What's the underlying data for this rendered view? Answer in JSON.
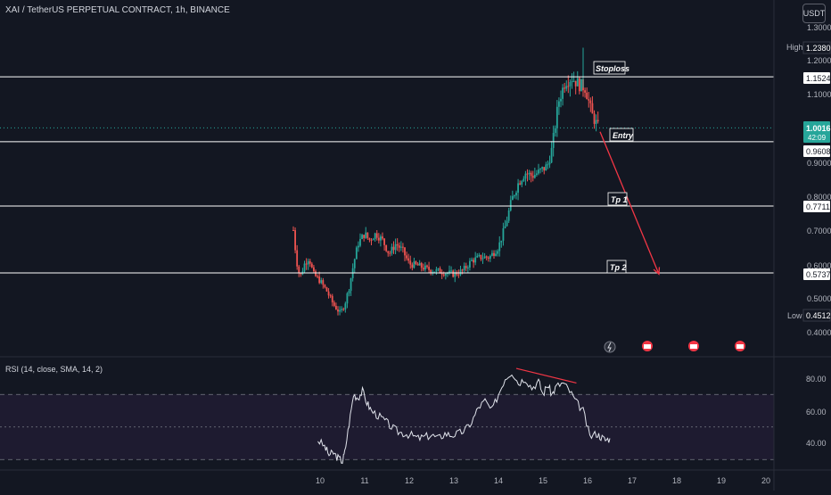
{
  "header": {
    "symbol_title": "XAI / TetherUS PERPETUAL CONTRACT, 1h, BINANCE",
    "currency": "USDT"
  },
  "price_axis": {
    "ticks": [
      "1.3000",
      "1.2000",
      "1.1000",
      "0.9000",
      "0.8000",
      "0.7000",
      "0.6000",
      "0.5000",
      "0.4000"
    ]
  },
  "labels": {
    "high_label": "High",
    "high_value": "1.2380",
    "low_label": "Low",
    "low_value": "0.4512",
    "current_price": "1.0016",
    "countdown": "42:09",
    "stoploss_price": "1.1524",
    "entry_price": "0.9608",
    "tp1_price": "0.7711",
    "tp2_price": "0.5737"
  },
  "annotations": {
    "stoploss": "Stoploss",
    "entry": "Entry",
    "tp1": "Tp 1",
    "tp2": "Tp 2"
  },
  "rsi": {
    "title": "RSI (14, close, SMA, 14, 2)",
    "ticks": [
      "80.00",
      "60.00",
      "40.00"
    ]
  },
  "time_axis": {
    "ticks": [
      "10",
      "11",
      "12",
      "13",
      "14",
      "15",
      "16",
      "17",
      "18",
      "19",
      "20"
    ]
  },
  "colors": {
    "background": "#131722",
    "up": "#26a69a",
    "down": "#ef5350",
    "level_line": "#ffffff",
    "arrow": "#f23645",
    "rsi_line": "#e0e3eb",
    "rsi_band": "#1e1b30"
  },
  "chart_data": [
    {
      "type": "candlestick",
      "title": "XAI / TetherUS PERPETUAL CONTRACT, 1h, BINANCE",
      "x_unit": "day of month",
      "xlim": [
        9.2,
        20.5
      ],
      "ylim": [
        0.38,
        1.32
      ],
      "levels": {
        "stoploss": 1.1524,
        "entry": 0.9608,
        "tp1": 0.7711,
        "tp2": 0.5737
      },
      "high": 1.238,
      "low": 0.4512,
      "last": 1.0016,
      "price_path": [
        [
          9.4,
          0.7
        ],
        [
          9.47,
          0.61
        ],
        [
          9.55,
          0.56
        ],
        [
          9.65,
          0.6
        ],
        [
          9.75,
          0.62
        ],
        [
          9.85,
          0.57
        ],
        [
          10.0,
          0.55
        ],
        [
          10.15,
          0.52
        ],
        [
          10.3,
          0.48
        ],
        [
          10.45,
          0.455
        ],
        [
          10.55,
          0.48
        ],
        [
          10.65,
          0.53
        ],
        [
          10.75,
          0.6
        ],
        [
          10.85,
          0.66
        ],
        [
          11.0,
          0.69
        ],
        [
          11.1,
          0.67
        ],
        [
          11.25,
          0.69
        ],
        [
          11.4,
          0.67
        ],
        [
          11.55,
          0.63
        ],
        [
          11.7,
          0.66
        ],
        [
          11.85,
          0.64
        ],
        [
          12.0,
          0.6
        ],
        [
          12.2,
          0.595
        ],
        [
          12.4,
          0.585
        ],
        [
          12.6,
          0.58
        ],
        [
          12.8,
          0.575
        ],
        [
          13.0,
          0.57
        ],
        [
          13.2,
          0.58
        ],
        [
          13.4,
          0.61
        ],
        [
          13.6,
          0.62
        ],
        [
          13.8,
          0.62
        ],
        [
          14.0,
          0.65
        ],
        [
          14.15,
          0.71
        ],
        [
          14.3,
          0.79
        ],
        [
          14.45,
          0.84
        ],
        [
          14.6,
          0.87
        ],
        [
          14.75,
          0.86
        ],
        [
          14.9,
          0.87
        ],
        [
          15.0,
          0.88
        ],
        [
          15.1,
          0.89
        ],
        [
          15.2,
          0.94
        ],
        [
          15.35,
          1.08
        ],
        [
          15.5,
          1.14
        ],
        [
          15.65,
          1.15
        ],
        [
          15.8,
          1.13
        ],
        [
          15.95,
          1.12
        ],
        [
          16.1,
          1.04
        ],
        [
          16.25,
          1.0
        ]
      ],
      "projection": {
        "from": [
          16.28,
          0.99
        ],
        "to": [
          17.6,
          0.57
        ]
      }
    },
    {
      "type": "line",
      "title": "RSI (14, close, SMA, 14, 2)",
      "ylim": [
        27,
        88
      ],
      "yticks": [
        80,
        60,
        40
      ],
      "bands": [
        70,
        50,
        30
      ],
      "x": [
        9.95,
        10.1,
        10.2,
        10.3,
        10.4,
        10.5,
        10.55,
        10.65,
        10.75,
        10.85,
        10.95,
        11.05,
        11.15,
        11.3,
        11.45,
        11.6,
        11.75,
        11.9,
        12.05,
        12.2,
        12.35,
        12.5,
        12.65,
        12.8,
        12.95,
        13.1,
        13.25,
        13.4,
        13.55,
        13.7,
        13.85,
        14.0,
        14.15,
        14.3,
        14.45,
        14.6,
        14.75,
        14.9,
        15.0,
        15.1,
        15.2,
        15.3,
        15.45,
        15.6,
        15.75,
        15.9,
        16.05,
        16.2,
        16.3,
        16.4,
        16.5
      ],
      "y": [
        42,
        38,
        33,
        34,
        31,
        29,
        34,
        52,
        70,
        68,
        72,
        65,
        60,
        57,
        54,
        50,
        47,
        46,
        45,
        43,
        44,
        45,
        43,
        46,
        45,
        46,
        48,
        53,
        62,
        66,
        60,
        70,
        80,
        84,
        77,
        80,
        74,
        78,
        70,
        76,
        70,
        75,
        77,
        72,
        65,
        60,
        44,
        46,
        44,
        42,
        43
      ],
      "divergence": {
        "x": [
          14.4,
          15.75
        ],
        "y": [
          86,
          77
        ]
      }
    }
  ]
}
